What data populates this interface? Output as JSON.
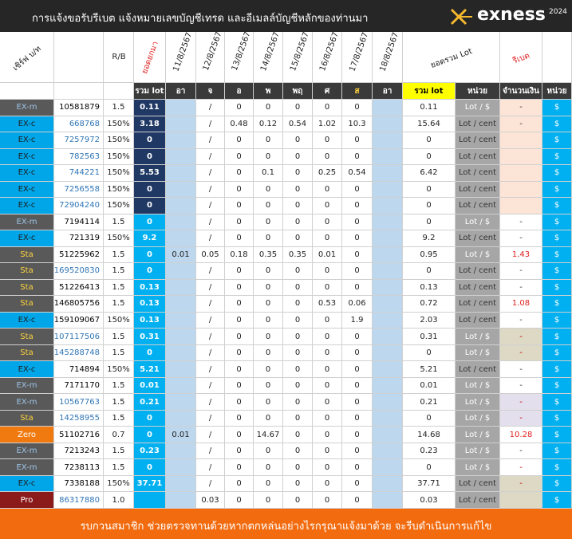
{
  "header": {
    "title": "การแจ้งขอรับรีเบต  แจ้งหมายเลขบัญชีเทรด และอีเมลล์บัญชีหลักของท่านมา",
    "logo": "exness",
    "year": "2024"
  },
  "table": {
    "head1": [
      "เซิร์ฟ บ/ท",
      null,
      "R/B",
      "ยอดยกมา",
      "11/8/2567",
      "12/8/2567",
      "13/8/2567",
      "14/8/2567",
      "15/8/2567",
      "16/8/2567",
      "17/8/2567",
      "18/8/2567",
      "ยอดรวม Lot",
      null,
      "รีเบต",
      null
    ],
    "head2": [
      null,
      null,
      null,
      "รวม lot",
      "อา",
      "จ",
      "อ",
      "พ",
      "พฤ",
      "ศ",
      "ส",
      "อา",
      "รวม lot",
      "หน่วย",
      "จำนวนเงิน",
      "หน่วย"
    ],
    "rows": [
      {
        "cells": [
          "EX-m",
          "10581879",
          "1.5",
          "0.11",
          null,
          "/",
          "0",
          "0",
          "0",
          "0",
          "0",
          null,
          "0.11",
          "Lot / $",
          "-",
          "$"
        ],
        "bg": "#595959",
        "fg": "#9dc3e6",
        "acc": "#000",
        "carry": "#203864",
        "unit_fg": "#fff",
        "amt": "#fce4d6",
        "amt_fg": "#333"
      },
      {
        "cells": [
          "EX-c",
          "668768",
          "150%",
          "3.18",
          null,
          "/",
          "0.48",
          "0.12",
          "0.54",
          "1.02",
          "10.3",
          null,
          "15.64",
          "Lot / cent",
          "-",
          "$"
        ],
        "bg": "#00a6e8",
        "fg": "#1f1f1f",
        "acc": "#2f75b5",
        "carry": "#203864",
        "unit_fg": "#333",
        "amt": "#fce4d6",
        "amt_fg": "#333"
      },
      {
        "cells": [
          "EX-c",
          "7257972",
          "150%",
          "0",
          null,
          "/",
          "0",
          "0",
          "0",
          "0",
          "0",
          null,
          "0",
          "Lot / cent",
          null,
          "$"
        ],
        "bg": "#00a6e8",
        "fg": "#1f1f1f",
        "acc": "#2f75b5",
        "carry": "#203864",
        "unit_fg": "#333",
        "amt": "#fce4d6",
        "amt_fg": "#333"
      },
      {
        "cells": [
          "EX-c",
          "782563",
          "150%",
          "0",
          null,
          "/",
          "0",
          "0",
          "0",
          "0",
          "0",
          null,
          "0",
          "Lot / cent",
          null,
          "$"
        ],
        "bg": "#00a6e8",
        "fg": "#1f1f1f",
        "acc": "#2f75b5",
        "carry": "#203864",
        "unit_fg": "#333",
        "amt": "#fce4d6",
        "amt_fg": "#333"
      },
      {
        "cells": [
          "EX-c",
          "744221",
          "150%",
          "5.53",
          null,
          "/",
          "0",
          "0.1",
          "0",
          "0.25",
          "0.54",
          null,
          "6.42",
          "Lot / cent",
          null,
          "$"
        ],
        "bg": "#00a6e8",
        "fg": "#1f1f1f",
        "acc": "#2f75b5",
        "carry": "#203864",
        "unit_fg": "#333",
        "amt": "#fce4d6",
        "amt_fg": "#333"
      },
      {
        "cells": [
          "EX-c",
          "7256558",
          "150%",
          "0",
          null,
          "/",
          "0",
          "0",
          "0",
          "0",
          "0",
          null,
          "0",
          "Lot / cent",
          null,
          "$"
        ],
        "bg": "#00a6e8",
        "fg": "#1f1f1f",
        "acc": "#2f75b5",
        "carry": "#203864",
        "unit_fg": "#333",
        "amt": "#fce4d6",
        "amt_fg": "#333"
      },
      {
        "cells": [
          "EX-c",
          "72904240",
          "150%",
          "0",
          null,
          "/",
          "0",
          "0",
          "0",
          "0",
          "0",
          null,
          "0",
          "Lot / cent",
          null,
          "$"
        ],
        "bg": "#00a6e8",
        "fg": "#1f1f1f",
        "acc": "#2f75b5",
        "carry": "#203864",
        "unit_fg": "#333",
        "amt": "#fce4d6",
        "amt_fg": "#333"
      },
      {
        "cells": [
          "EX-m",
          "7194114",
          "1.5",
          "0",
          null,
          "/",
          "0",
          "0",
          "0",
          "0",
          "0",
          null,
          "0",
          "Lot / $",
          "-",
          "$"
        ],
        "bg": "#595959",
        "fg": "#9dc3e6",
        "acc": "#000",
        "carry": "#00b0f0",
        "unit_fg": "#fff",
        "amt": "#ffffff",
        "amt_fg": "#333"
      },
      {
        "cells": [
          "EX-c",
          "721319",
          "150%",
          "9.2",
          null,
          "/",
          "0",
          "0",
          "0",
          "0",
          "0",
          null,
          "9.2",
          "Lot / cent",
          "-",
          "$"
        ],
        "bg": "#00a6e8",
        "fg": "#1f1f1f",
        "acc": "#000",
        "carry": "#00b0f0",
        "unit_fg": "#333",
        "amt": "#ffffff",
        "amt_fg": "#333"
      },
      {
        "cells": [
          "Sta",
          "51225962",
          "1.5",
          "0",
          "0.01",
          "0.05",
          "0.18",
          "0.35",
          "0.35",
          "0.01",
          "0",
          null,
          "0.95",
          "Lot / $",
          "1.43",
          "$"
        ],
        "bg": "#595959",
        "fg": "#ffd43b",
        "acc": "#000",
        "carry": "#00b0f0",
        "unit_fg": "#fff",
        "amt": "#ffffff",
        "amt_fg": "#e02020"
      },
      {
        "cells": [
          "Sta",
          "169520830",
          "1.5",
          "0",
          null,
          "/",
          "0",
          "0",
          "0",
          "0",
          "0",
          null,
          "0",
          "Lot / cent",
          "-",
          "$"
        ],
        "bg": "#595959",
        "fg": "#ffd43b",
        "acc": "#2f75b5",
        "carry": "#00b0f0",
        "unit_fg": "#333",
        "amt": "#ffffff",
        "amt_fg": "#333"
      },
      {
        "cells": [
          "Sta",
          "51226413",
          "1.5",
          "0.13",
          null,
          "/",
          "0",
          "0",
          "0",
          "0",
          "0",
          null,
          "0.13",
          "Lot / cent",
          "-",
          "$"
        ],
        "bg": "#595959",
        "fg": "#ffd43b",
        "acc": "#000",
        "carry": "#00b0f0",
        "unit_fg": "#333",
        "amt": "#ffffff",
        "amt_fg": "#333"
      },
      {
        "cells": [
          "Sta",
          "146805756",
          "1.5",
          "0.13",
          null,
          "/",
          "0",
          "0",
          "0",
          "0.53",
          "0.06",
          null,
          "0.72",
          "Lot / cent",
          "1.08",
          "$"
        ],
        "bg": "#595959",
        "fg": "#ffd43b",
        "acc": "#000",
        "carry": "#00b0f0",
        "unit_fg": "#333",
        "amt": "#ffffff",
        "amt_fg": "#e02020"
      },
      {
        "cells": [
          "EX-c",
          "159109067",
          "150%",
          "0.13",
          null,
          "/",
          "0",
          "0",
          "0",
          "0",
          "1.9",
          null,
          "2.03",
          "Lot / cent",
          "-",
          "$"
        ],
        "bg": "#00a6e8",
        "fg": "#1f1f1f",
        "acc": "#000",
        "carry": "#00b0f0",
        "unit_fg": "#333",
        "amt": "#ffffff",
        "amt_fg": "#333"
      },
      {
        "cells": [
          "Sta",
          "107117506",
          "1.5",
          "0.31",
          null,
          "/",
          "0",
          "0",
          "0",
          "0",
          "0",
          null,
          "0.31",
          "Lot / $",
          "-",
          "$"
        ],
        "bg": "#595959",
        "fg": "#ffd43b",
        "acc": "#2f75b5",
        "carry": "#00b0f0",
        "unit_fg": "#fff",
        "amt": "#ddd9c4",
        "amt_fg": "#c00000"
      },
      {
        "cells": [
          "Sta",
          "145288748",
          "1.5",
          "0",
          null,
          "/",
          "0",
          "0",
          "0",
          "0",
          "0",
          null,
          "0",
          "Lot / $",
          "-",
          "$"
        ],
        "bg": "#595959",
        "fg": "#ffd43b",
        "acc": "#2f75b5",
        "carry": "#00b0f0",
        "unit_fg": "#fff",
        "amt": "#ddd9c4",
        "amt_fg": "#c00000"
      },
      {
        "cells": [
          "EX-c",
          "714894",
          "150%",
          "5.21",
          null,
          "/",
          "0",
          "0",
          "0",
          "0",
          "0",
          null,
          "5.21",
          "Lot / cent",
          "-",
          "$"
        ],
        "bg": "#00a6e8",
        "fg": "#1f1f1f",
        "acc": "#000",
        "carry": "#00b0f0",
        "unit_fg": "#333",
        "amt": "#ffffff",
        "amt_fg": "#333"
      },
      {
        "cells": [
          "EX-m",
          "7171170",
          "1.5",
          "0.01",
          null,
          "/",
          "0",
          "0",
          "0",
          "0",
          "0",
          null,
          "0.01",
          "Lot / $",
          "-",
          "$"
        ],
        "bg": "#595959",
        "fg": "#9dc3e6",
        "acc": "#000",
        "carry": "#00b0f0",
        "unit_fg": "#fff",
        "amt": "#ffffff",
        "amt_fg": "#333"
      },
      {
        "cells": [
          "EX-m",
          "10567763",
          "1.5",
          "0.21",
          null,
          "/",
          "0",
          "0",
          "0",
          "0",
          "0",
          null,
          "0.21",
          "Lot / $",
          "-",
          "$"
        ],
        "bg": "#595959",
        "fg": "#9dc3e6",
        "acc": "#2f75b5",
        "carry": "#00b0f0",
        "unit_fg": "#fff",
        "amt": "#e4dfec",
        "amt_fg": "#c00000"
      },
      {
        "cells": [
          "Sta",
          "14258955",
          "1.5",
          "0",
          null,
          "/",
          "0",
          "0",
          "0",
          "0",
          "0",
          null,
          "0",
          "Lot / $",
          "-",
          "$"
        ],
        "bg": "#595959",
        "fg": "#ffd43b",
        "acc": "#2f75b5",
        "carry": "#00b0f0",
        "unit_fg": "#fff",
        "amt": "#e4dfec",
        "amt_fg": "#c00000"
      },
      {
        "cells": [
          "Zero",
          "51102716",
          "0.7",
          "0",
          "0.01",
          "/",
          "0",
          "14.67",
          "0",
          "0",
          "0",
          null,
          "14.68",
          "Lot / $",
          "10.28",
          "$"
        ],
        "bg": "#f07a10",
        "fg": "#ffffff",
        "acc": "#000",
        "carry": "#00b0f0",
        "unit_fg": "#fff",
        "amt": "#ffffff",
        "amt_fg": "#e02020"
      },
      {
        "cells": [
          "EX-m",
          "7213243",
          "1.5",
          "0.23",
          null,
          "/",
          "0",
          "0",
          "0",
          "0",
          "0",
          null,
          "0.23",
          "Lot / $",
          "-",
          "$"
        ],
        "bg": "#595959",
        "fg": "#9dc3e6",
        "acc": "#000",
        "carry": "#00b0f0",
        "unit_fg": "#fff",
        "amt": "#ffffff",
        "amt_fg": "#333"
      },
      {
        "cells": [
          "EX-m",
          "7238113",
          "1.5",
          "0",
          null,
          "/",
          "0",
          "0",
          "0",
          "0",
          "0",
          null,
          "0",
          "Lot / $",
          "-",
          "$"
        ],
        "bg": "#595959",
        "fg": "#9dc3e6",
        "acc": "#000",
        "carry": "#00b0f0",
        "unit_fg": "#fff",
        "amt": "#ffffff",
        "amt_fg": "#c00000"
      },
      {
        "cells": [
          "EX-c",
          "7338188",
          "150%",
          "37.71",
          null,
          "/",
          "0",
          "0",
          "0",
          "0",
          "0",
          null,
          "37.71",
          "Lot / cent",
          "-",
          "$"
        ],
        "bg": "#00a6e8",
        "fg": "#1f1f1f",
        "acc": "#000",
        "carry": "#00b0f0",
        "unit_fg": "#333",
        "amt": "#ddd9c4",
        "amt_fg": "#c00000"
      },
      {
        "cells": [
          "Pro",
          "86317880",
          "1.0",
          null,
          null,
          "0.03",
          "0",
          "0",
          "0",
          "0",
          "0",
          null,
          "0.03",
          "Lot / cent",
          null,
          "$"
        ],
        "bg": "#8b1a1a",
        "fg": "#ffffff",
        "acc": "#2f75b5",
        "carry": "#00b0f0",
        "unit_fg": "#333",
        "amt": "#ddd9c4",
        "amt_fg": "#333"
      }
    ]
  },
  "footer": {
    "text": "รบกวนสมาชิก ช่วยตรวจทานด้วยหากตกหล่นอย่างไรกรุณาแจ้งมาด้วย จะรีบดำเนินการแก้ไข"
  }
}
